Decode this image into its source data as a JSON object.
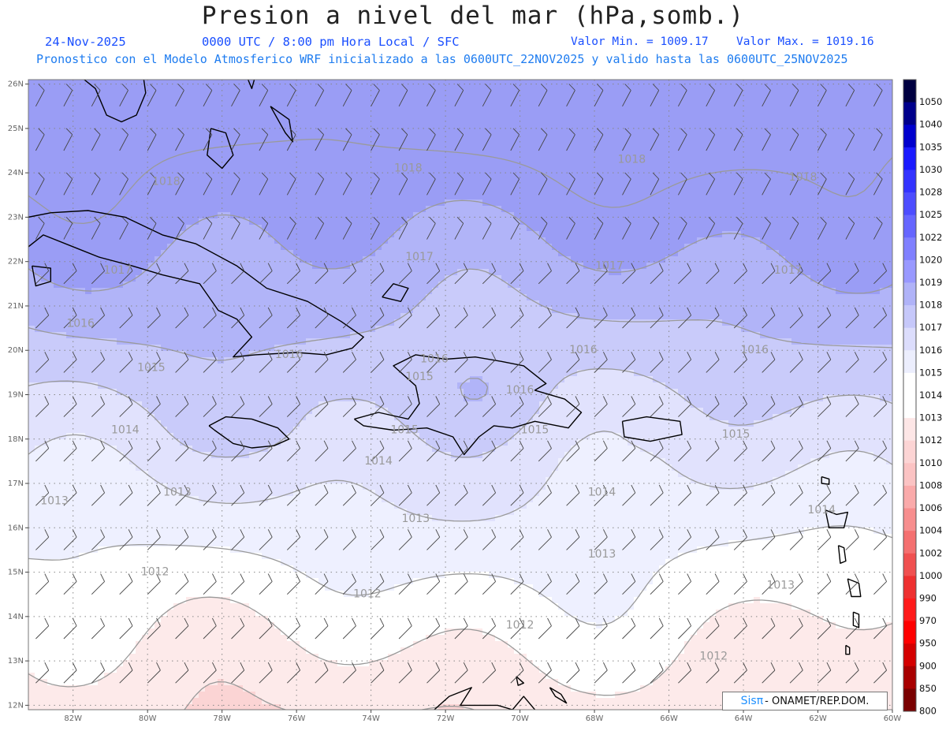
{
  "header": {
    "title": "Presion a nivel del mar (hPa,somb.)",
    "date": "24-Nov-2025",
    "time_info": "0000 UTC / 8:00 pm Hora Local / SFC",
    "min_value": "Valor Min. = 1009.17",
    "max_value": "Valor Max. = 1019.16",
    "model_info": "Pronostico con el Modelo Atmosferico WRF inicializado a las 0600UTC_22NOV2025 y valido hasta las  0600UTC_25NOV2025"
  },
  "map": {
    "lon_range": [
      -83.2,
      -60
    ],
    "lat_range": [
      11.9,
      26.1
    ],
    "lat_ticks": [
      "12N",
      "13N",
      "14N",
      "15N",
      "16N",
      "17N",
      "18N",
      "19N",
      "20N",
      "21N",
      "22N",
      "23N",
      "24N",
      "25N",
      "26N"
    ],
    "lon_ticks": [
      "82W",
      "80W",
      "78W",
      "76W",
      "74W",
      "72W",
      "70W",
      "68W",
      "66W",
      "64W",
      "62W",
      "60W"
    ],
    "contour_labels": [
      {
        "text": "1018",
        "lon": -79.5,
        "lat": 23.8
      },
      {
        "text": "1018",
        "lon": -73.0,
        "lat": 24.1
      },
      {
        "text": "1018",
        "lon": -67.0,
        "lat": 24.3
      },
      {
        "text": "1018",
        "lon": -62.4,
        "lat": 23.9
      },
      {
        "text": "1017",
        "lon": -80.8,
        "lat": 21.8
      },
      {
        "text": "1017",
        "lon": -72.7,
        "lat": 22.1
      },
      {
        "text": "1017",
        "lon": -67.6,
        "lat": 21.9
      },
      {
        "text": "1017",
        "lon": -62.8,
        "lat": 21.8
      },
      {
        "text": "1016",
        "lon": -81.8,
        "lat": 20.6
      },
      {
        "text": "1016",
        "lon": -76.2,
        "lat": 19.9
      },
      {
        "text": "1016",
        "lon": -72.3,
        "lat": 19.8
      },
      {
        "text": "1016",
        "lon": -68.3,
        "lat": 20.0
      },
      {
        "text": "1016",
        "lon": -63.7,
        "lat": 20.0
      },
      {
        "text": "1016",
        "lon": -70.0,
        "lat": 19.1
      },
      {
        "text": "1015",
        "lon": -79.9,
        "lat": 19.6
      },
      {
        "text": "1015",
        "lon": -72.7,
        "lat": 19.4
      },
      {
        "text": "1015",
        "lon": -73.1,
        "lat": 18.2
      },
      {
        "text": "1015",
        "lon": -69.6,
        "lat": 18.2
      },
      {
        "text": "1015",
        "lon": -64.2,
        "lat": 18.1
      },
      {
        "text": "1014",
        "lon": -80.6,
        "lat": 18.2
      },
      {
        "text": "1014",
        "lon": -73.8,
        "lat": 17.5
      },
      {
        "text": "1014",
        "lon": -67.8,
        "lat": 16.8
      },
      {
        "text": "1014",
        "lon": -61.9,
        "lat": 16.4
      },
      {
        "text": "1013",
        "lon": -82.5,
        "lat": 16.6
      },
      {
        "text": "1013",
        "lon": -79.2,
        "lat": 16.8
      },
      {
        "text": "1013",
        "lon": -72.8,
        "lat": 16.2
      },
      {
        "text": "1013",
        "lon": -67.8,
        "lat": 15.4
      },
      {
        "text": "1013",
        "lon": -63.0,
        "lat": 14.7
      },
      {
        "text": "1012",
        "lon": -79.8,
        "lat": 15.0
      },
      {
        "text": "1012",
        "lon": -74.1,
        "lat": 14.5
      },
      {
        "text": "1012",
        "lon": -70.0,
        "lat": 13.8
      },
      {
        "text": "1012",
        "lon": -64.8,
        "lat": 13.1
      }
    ],
    "fill_bands": [
      {
        "lo": 1018,
        "color": "#9a9df5"
      },
      {
        "lo": 1017,
        "color": "#b1b4f8"
      },
      {
        "lo": 1016,
        "color": "#c9cbfa"
      },
      {
        "lo": 1015,
        "color": "#e1e2fd"
      },
      {
        "lo": 1014,
        "color": "#eef0ff"
      },
      {
        "lo": 1013,
        "color": "#ffffff"
      },
      {
        "lo": 1012,
        "color": "#fdeaea"
      },
      {
        "lo": 1011,
        "color": "#fbd4d4"
      }
    ]
  },
  "colorbar": {
    "levels": [
      "1050",
      "1040",
      "1035",
      "1030",
      "1028",
      "1025",
      "1022",
      "1020",
      "1019",
      "1018",
      "1017",
      "1016",
      "1015",
      "1014",
      "1013",
      "1012",
      "1010",
      "1008",
      "1006",
      "1004",
      "1002",
      "1000",
      "990",
      "970",
      "950",
      "900",
      "850",
      "800"
    ],
    "colors": [
      "#000040",
      "#00008b",
      "#0000cd",
      "#1a1aff",
      "#3333ff",
      "#4d4dff",
      "#6666ff",
      "#8080ff",
      "#9999ff",
      "#b0b3f8",
      "#c6c8fa",
      "#dcddfc",
      "#eceefd",
      "#ffffff",
      "#ffffff",
      "#fde6e6",
      "#fcd4d4",
      "#fbc3c3",
      "#faaaaa",
      "#f78e8e",
      "#f47070",
      "#f05050",
      "#ee3030",
      "#ff1a1a",
      "#ff0000",
      "#d40000",
      "#a80000",
      "#7a0000"
    ]
  },
  "credit": {
    "logo": "Sisπ",
    "org": " - ONAMET/REP.DOM."
  }
}
